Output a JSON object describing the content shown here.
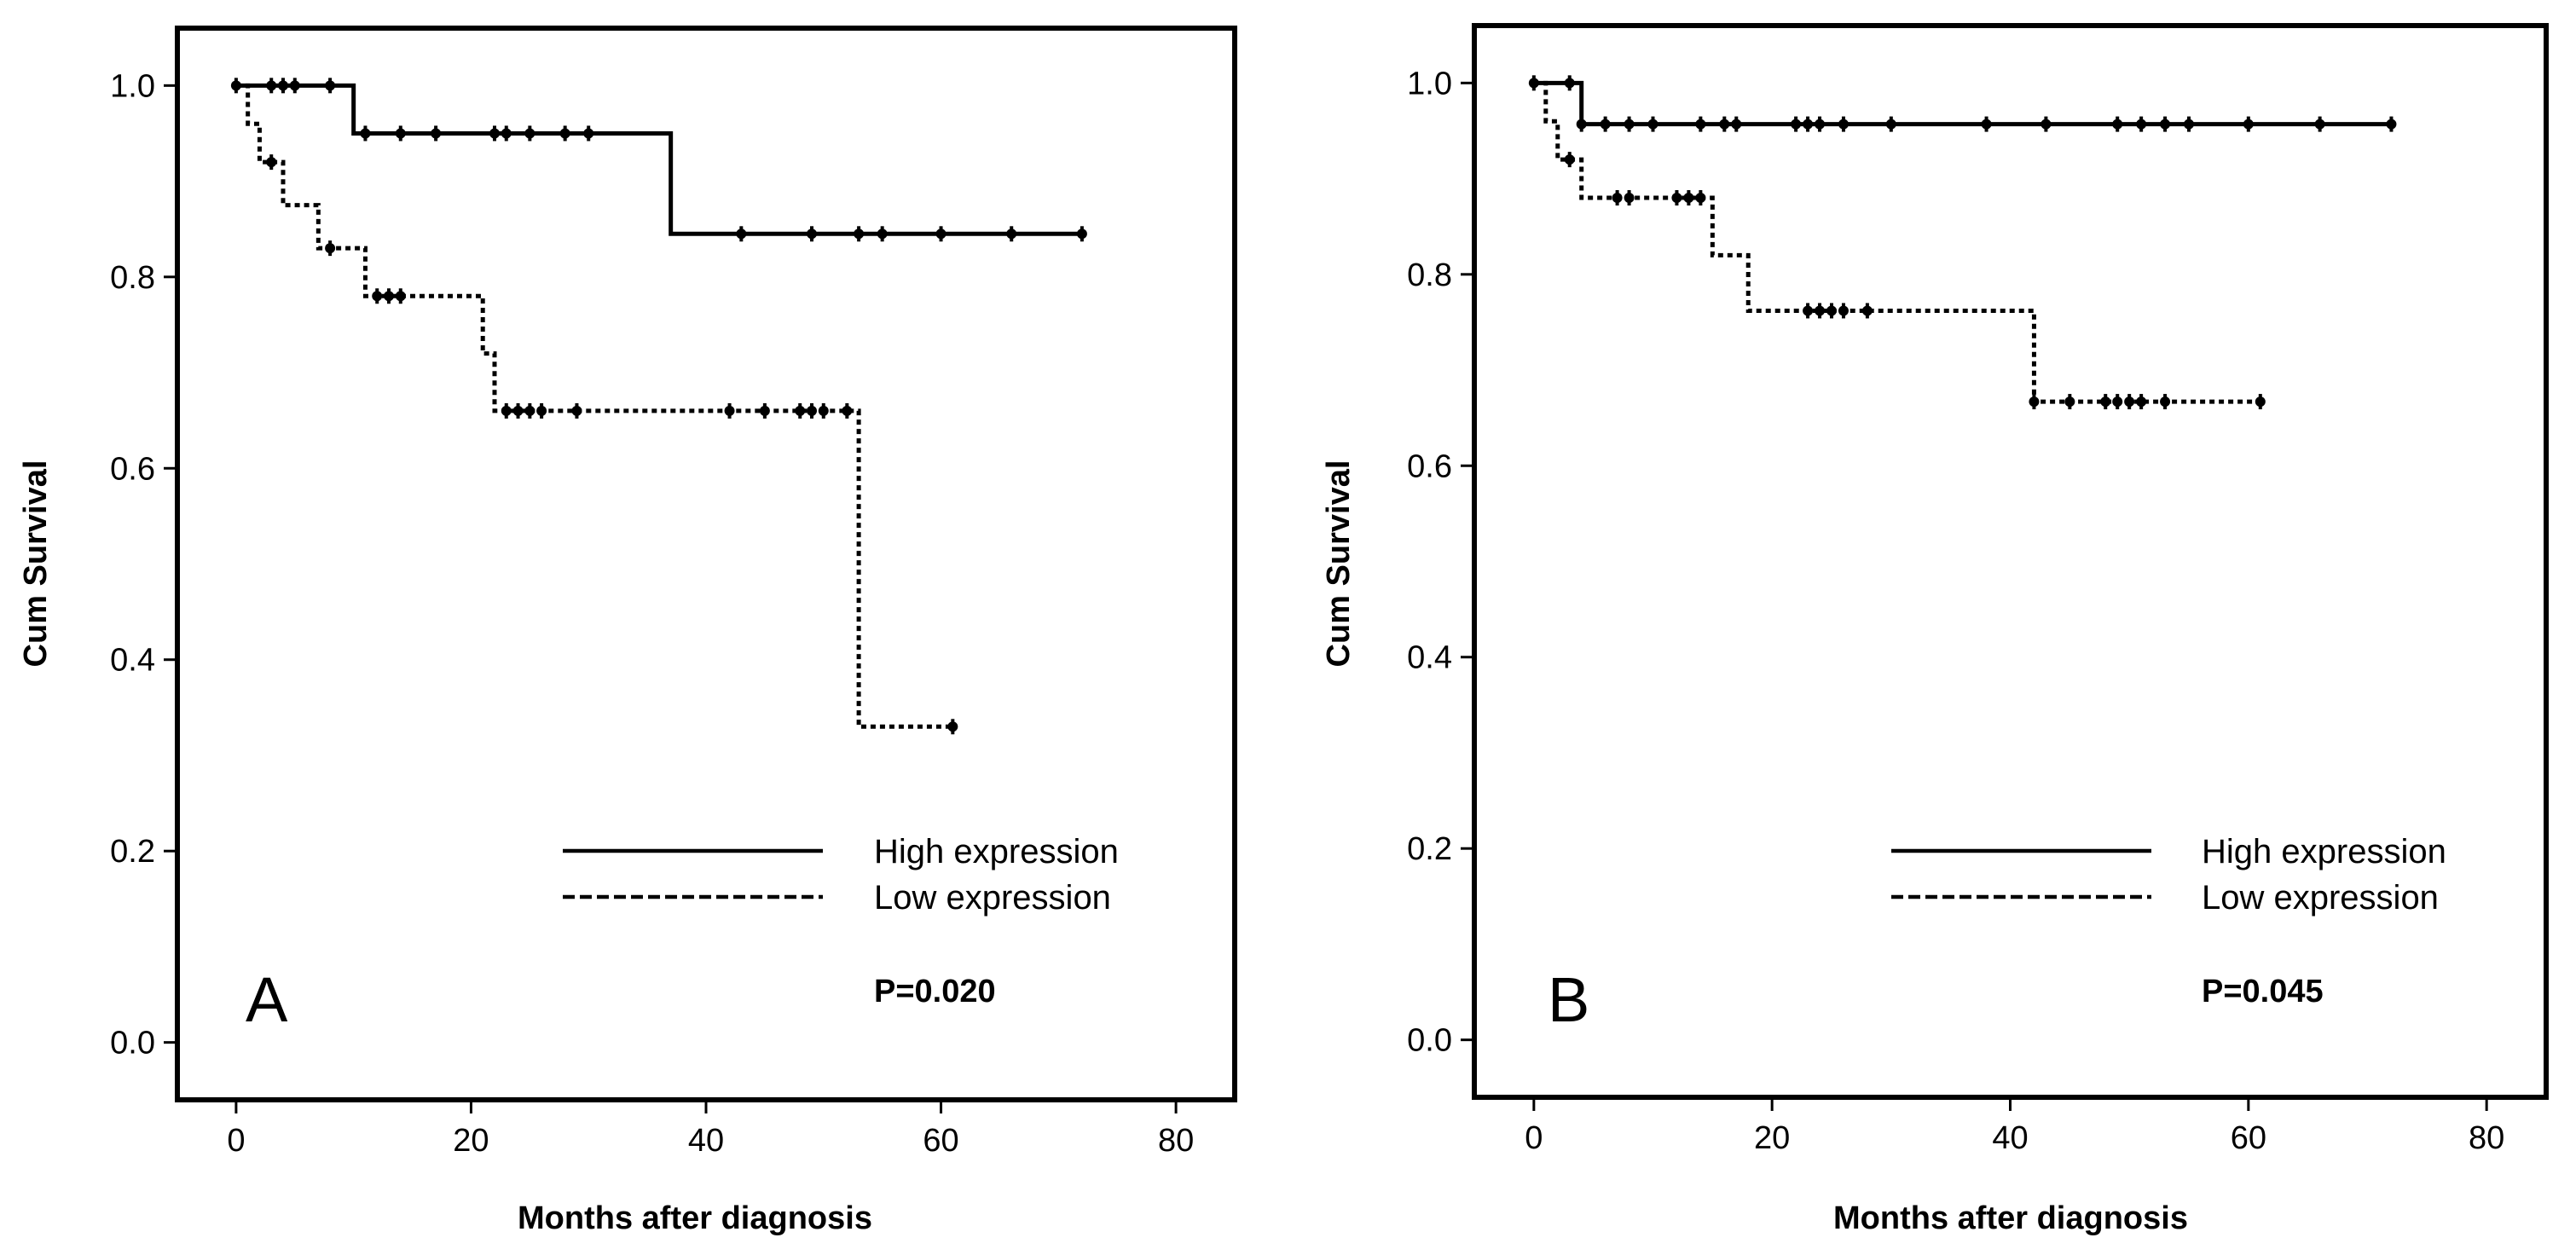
{
  "chart_data": [
    {
      "type": "line",
      "panel": "A",
      "xlabel": "Months after diagnosis",
      "ylabel": "Cum Survival",
      "xlim": [
        -5,
        85
      ],
      "ylim": [
        -0.06,
        1.06
      ],
      "xticks": [
        0,
        20,
        40,
        60,
        80
      ],
      "yticks": [
        0.0,
        0.2,
        0.4,
        0.6,
        0.8,
        1.0
      ],
      "xtick_labels": [
        "0",
        "20",
        "40",
        "60",
        "80"
      ],
      "ytick_labels": [
        "0.0",
        "0.2",
        "0.4",
        "0.6",
        "0.8",
        "1.0"
      ],
      "grid": false,
      "legend_position": "lower-right",
      "annotation": "P=0.020",
      "series": [
        {
          "name": "High expression",
          "style": "solid",
          "steps": [
            [
              0,
              1.0
            ],
            [
              10,
              0.95
            ],
            [
              37,
              0.845
            ]
          ],
          "end_x": 72,
          "censored_x": [
            0,
            3,
            4,
            5,
            8,
            11,
            14,
            17,
            22,
            23,
            25,
            28,
            30,
            43,
            49,
            53,
            55,
            60,
            66,
            72
          ]
        },
        {
          "name": "Low expression",
          "style": "dotted",
          "steps": [
            [
              0,
              1.0
            ],
            [
              1,
              0.96
            ],
            [
              2,
              0.92
            ],
            [
              4,
              0.875
            ],
            [
              7,
              0.83
            ],
            [
              11,
              0.78
            ],
            [
              21,
              0.72
            ],
            [
              22,
              0.66
            ],
            [
              53,
              0.33
            ]
          ],
          "end_x": 61,
          "censored_x": [
            3,
            8,
            12,
            13,
            14,
            23,
            24,
            25,
            26,
            29,
            42,
            45,
            48,
            49,
            50,
            52,
            61
          ]
        }
      ]
    },
    {
      "type": "line",
      "panel": "B",
      "xlabel": "Months after diagnosis",
      "ylabel": "Cum Survival",
      "xlim": [
        -5,
        85
      ],
      "ylim": [
        -0.06,
        1.06
      ],
      "xticks": [
        0,
        20,
        40,
        60,
        80
      ],
      "yticks": [
        0.0,
        0.2,
        0.4,
        0.6,
        0.8,
        1.0
      ],
      "xtick_labels": [
        "0",
        "20",
        "40",
        "60",
        "80"
      ],
      "ytick_labels": [
        "0.0",
        "0.2",
        "0.4",
        "0.6",
        "0.8",
        "1.0"
      ],
      "grid": false,
      "legend_position": "lower-right",
      "annotation": "P=0.045",
      "series": [
        {
          "name": "High expression",
          "style": "solid",
          "steps": [
            [
              0,
              1.0
            ],
            [
              4,
              0.957
            ]
          ],
          "end_x": 72,
          "censored_x": [
            0,
            3,
            4,
            6,
            8,
            10,
            14,
            16,
            17,
            22,
            23,
            24,
            26,
            30,
            38,
            43,
            49,
            51,
            53,
            55,
            60,
            66,
            72
          ]
        },
        {
          "name": "Low expression",
          "style": "dotted",
          "steps": [
            [
              0,
              1.0
            ],
            [
              1,
              0.96
            ],
            [
              2,
              0.92
            ],
            [
              4,
              0.88
            ],
            [
              15,
              0.82
            ],
            [
              18,
              0.762
            ],
            [
              42,
              0.667
            ]
          ],
          "end_x": 61,
          "censored_x": [
            3,
            7,
            8,
            12,
            13,
            14,
            23,
            24,
            25,
            26,
            28,
            42,
            45,
            48,
            49,
            50,
            51,
            53,
            61
          ]
        }
      ]
    }
  ]
}
